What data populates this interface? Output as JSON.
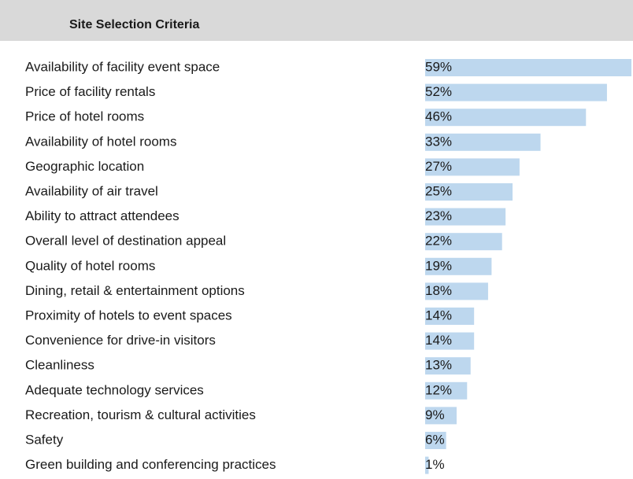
{
  "chart_data": {
    "type": "bar",
    "title": "Site Selection Criteria",
    "categories": [
      "Availability of facility event space",
      "Price of facility rentals",
      "Price of hotel rooms",
      "Availability of hotel rooms",
      "Geographic location",
      "Availability of air travel",
      "Ability to attract attendees",
      "Overall level of destination appeal",
      "Quality of hotel rooms",
      "Dining, retail & entertainment options",
      "Proximity of hotels to event spaces",
      "Convenience for drive-in visitors",
      "Cleanliness",
      "Adequate technology services",
      "Recreation, tourism & cultural activities",
      "Safety",
      "Green building and conferencing practices"
    ],
    "values": [
      59,
      52,
      46,
      33,
      27,
      25,
      23,
      22,
      19,
      18,
      14,
      14,
      13,
      12,
      9,
      6,
      1
    ],
    "value_labels": [
      "59%",
      "52%",
      "46%",
      "33%",
      "27%",
      "25%",
      "23%",
      "22%",
      "19%",
      "18%",
      "14%",
      "14%",
      "13%",
      "12%",
      "9%",
      "6%",
      "1%"
    ],
    "color": "#bdd7ee"
  }
}
